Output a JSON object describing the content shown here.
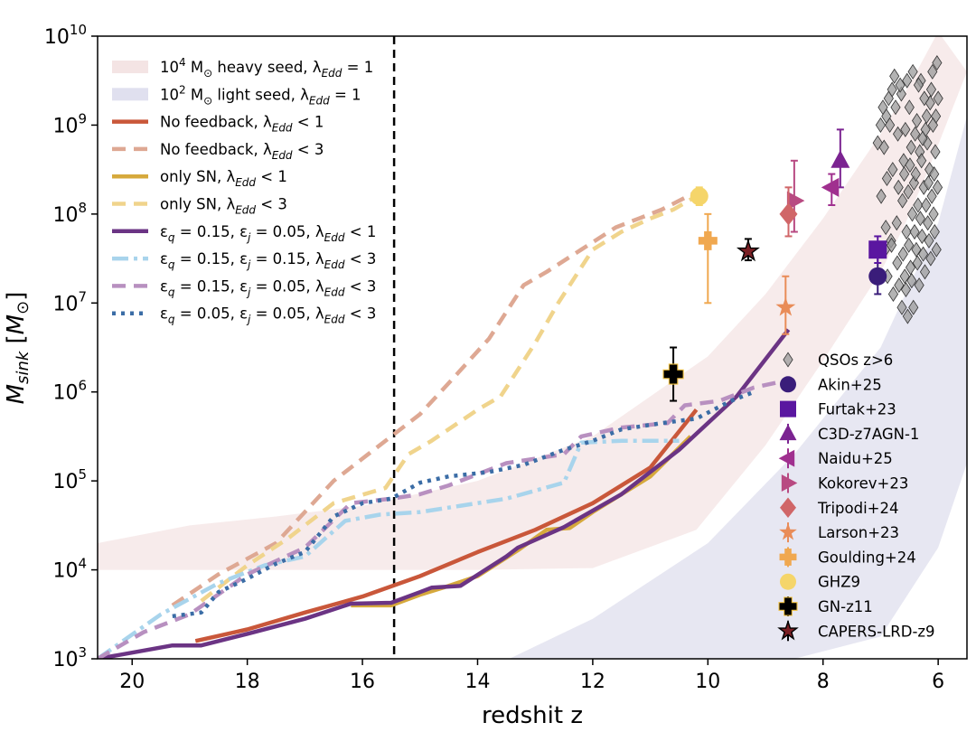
{
  "chart_data": {
    "type": "line",
    "xlabel": "redshit z",
    "ylabel": "M_sink [M_⊙]",
    "xlim": [
      20.6,
      5.5
    ],
    "ylim_log10": [
      3,
      10
    ],
    "y_scale": "log",
    "x_ticks": [
      20,
      18,
      16,
      14,
      12,
      10,
      8,
      6
    ],
    "y_tick_exponents": [
      3,
      4,
      5,
      6,
      7,
      8,
      9,
      10
    ],
    "y_tick_base": "10",
    "vertical_line": {
      "x": 15.45,
      "style": "dashed",
      "color": "#000000"
    },
    "bands": [
      {
        "id": "heavy",
        "label": "10^4 M_⊙ heavy seed, λ_Edd = 1",
        "color": "#c9797a",
        "opacity": 0.15,
        "lower": [
          [
            20.6,
            4.0
          ],
          [
            18,
            4.0
          ],
          [
            16,
            4.0
          ],
          [
            14,
            4.0
          ],
          [
            12,
            4.02
          ],
          [
            10.2,
            4.45
          ],
          [
            9,
            5.4
          ],
          [
            8,
            6.35
          ],
          [
            7,
            7.35
          ],
          [
            6.6,
            7.85
          ],
          [
            6.2,
            8.45
          ],
          [
            5.5,
            9.6
          ]
        ],
        "upper": [
          [
            20.6,
            4.3
          ],
          [
            19,
            4.5
          ],
          [
            17.5,
            4.6
          ],
          [
            16,
            4.72
          ],
          [
            14,
            5.0
          ],
          [
            12,
            5.5
          ],
          [
            10,
            6.4
          ],
          [
            9,
            7.1
          ],
          [
            8,
            7.95
          ],
          [
            7,
            8.9
          ],
          [
            6.5,
            9.45
          ],
          [
            6,
            10.05
          ]
        ]
      },
      {
        "id": "light",
        "label": "10^2 M_⊙ light seed, λ_Edd = 1",
        "color": "#7a78b8",
        "opacity": 0.18,
        "lower": [
          [
            11.55,
            3
          ],
          [
            10,
            3
          ],
          [
            8.5,
            3
          ],
          [
            7,
            3.25
          ],
          [
            6,
            4.25
          ],
          [
            5.5,
            5.2
          ]
        ],
        "upper": [
          [
            13.45,
            3
          ],
          [
            12,
            3.45
          ],
          [
            10,
            4.3
          ],
          [
            8.5,
            5.3
          ],
          [
            7,
            6.5
          ],
          [
            6,
            7.9
          ],
          [
            5.5,
            9.1
          ]
        ]
      }
    ],
    "series": [
      {
        "id": "nofb1",
        "label": "No feedback, λ_Edd < 1",
        "color": "#c9573a",
        "dash": "",
        "width": 4.5,
        "points": [
          [
            18.9,
            3.2
          ],
          [
            18,
            3.33
          ],
          [
            17,
            3.52
          ],
          [
            16,
            3.7
          ],
          [
            15,
            3.93
          ],
          [
            14,
            4.2
          ],
          [
            13,
            4.45
          ],
          [
            12,
            4.75
          ],
          [
            11,
            5.15
          ],
          [
            10.2,
            5.8
          ]
        ]
      },
      {
        "id": "nofb3",
        "label": "No feedback, λ_Edd < 3",
        "color": "#dea893",
        "dash": "15 9",
        "width": 4.5,
        "points": [
          [
            19.3,
            3.6
          ],
          [
            18.5,
            3.95
          ],
          [
            17.5,
            4.3
          ],
          [
            16.5,
            5.0
          ],
          [
            15.5,
            5.5
          ],
          [
            15,
            5.75
          ],
          [
            14.5,
            6.1
          ],
          [
            13.8,
            6.6
          ],
          [
            13.2,
            7.2
          ],
          [
            12.8,
            7.35
          ],
          [
            12.2,
            7.6
          ],
          [
            11.6,
            7.85
          ],
          [
            11.2,
            7.95
          ],
          [
            10.8,
            8.05
          ],
          [
            10.2,
            8.25
          ]
        ]
      },
      {
        "id": "sn1",
        "label": "only SN, λ_Edd < 1",
        "color": "#d6a93c",
        "dash": "",
        "width": 4.5,
        "points": [
          [
            16.2,
            3.6
          ],
          [
            15.5,
            3.6
          ],
          [
            15,
            3.72
          ],
          [
            14.5,
            3.82
          ],
          [
            14,
            3.93
          ],
          [
            13.3,
            4.22
          ],
          [
            12.8,
            4.45
          ],
          [
            12.4,
            4.47
          ],
          [
            12,
            4.65
          ],
          [
            11,
            5.05
          ],
          [
            10.3,
            5.5
          ]
        ]
      },
      {
        "id": "sn3",
        "label": "only SN, λ_Edd < 3",
        "color": "#f0d48c",
        "dash": "15 9",
        "width": 4.5,
        "points": [
          [
            18.8,
            3.65
          ],
          [
            18,
            4.05
          ],
          [
            17.3,
            4.35
          ],
          [
            16.5,
            4.75
          ],
          [
            15.6,
            4.92
          ],
          [
            15.2,
            5.3
          ],
          [
            14.8,
            5.45
          ],
          [
            14,
            5.8
          ],
          [
            13.6,
            5.95
          ],
          [
            13,
            6.55
          ],
          [
            12.6,
            7.0
          ],
          [
            12,
            7.6
          ],
          [
            11.5,
            7.8
          ],
          [
            11,
            7.95
          ],
          [
            10.6,
            8.05
          ],
          [
            10.2,
            8.2
          ]
        ]
      },
      {
        "id": "eq15ej05l1",
        "label": "ε_q = 0.15, ε_j = 0.05, λ_Edd < 1",
        "color": "#6b3484",
        "dash": "",
        "width": 4.5,
        "points": [
          [
            20.6,
            3.0
          ],
          [
            19.3,
            3.15
          ],
          [
            18.8,
            3.15
          ],
          [
            18,
            3.28
          ],
          [
            17,
            3.45
          ],
          [
            16.2,
            3.62
          ],
          [
            15.5,
            3.63
          ],
          [
            15,
            3.75
          ],
          [
            14.8,
            3.8
          ],
          [
            14.3,
            3.82
          ],
          [
            13.5,
            4.15
          ],
          [
            13.3,
            4.25
          ],
          [
            12.5,
            4.48
          ],
          [
            11.5,
            4.85
          ],
          [
            10.5,
            5.35
          ],
          [
            9.5,
            5.95
          ],
          [
            8.6,
            6.7
          ]
        ]
      },
      {
        "id": "eq15ej15l3",
        "label": "ε_q = 0.15, ε_j = 0.15, λ_Edd < 3",
        "color": "#a8d4ec",
        "dash": "18 6 4 6",
        "width": 4.5,
        "points": [
          [
            20.6,
            3.0
          ],
          [
            19.5,
            3.5
          ],
          [
            18.5,
            3.85
          ],
          [
            17.7,
            4.05
          ],
          [
            17,
            4.15
          ],
          [
            16.3,
            4.55
          ],
          [
            15.7,
            4.62
          ],
          [
            15,
            4.65
          ],
          [
            14.5,
            4.7
          ],
          [
            13.5,
            4.8
          ],
          [
            12.5,
            4.98
          ],
          [
            12.2,
            5.43
          ],
          [
            11.5,
            5.45
          ],
          [
            10.5,
            5.45
          ]
        ]
      },
      {
        "id": "eq15ej05l3",
        "label": "ε_q = 0.15, ε_j = 0.05, λ_Edd < 3",
        "color": "#b890c0",
        "dash": "15 9",
        "width": 4.5,
        "points": [
          [
            20.6,
            3.0
          ],
          [
            19.8,
            3.3
          ],
          [
            19,
            3.5
          ],
          [
            18,
            3.95
          ],
          [
            17,
            4.25
          ],
          [
            16.2,
            4.75
          ],
          [
            15.5,
            4.8
          ],
          [
            15,
            4.85
          ],
          [
            14.5,
            4.95
          ],
          [
            13.5,
            5.2
          ],
          [
            12.5,
            5.3
          ],
          [
            12.2,
            5.5
          ],
          [
            11.5,
            5.6
          ],
          [
            10.7,
            5.65
          ],
          [
            10.4,
            5.85
          ],
          [
            9.8,
            5.9
          ],
          [
            9.2,
            6.05
          ],
          [
            8.7,
            6.12
          ]
        ]
      },
      {
        "id": "eq05ej05l3",
        "label": "ε_q = 0.05, ε_j = 0.05, λ_Edd < 3",
        "color": "#3b6da6",
        "dash": "4 6",
        "width": 4.5,
        "points": [
          [
            19.3,
            3.48
          ],
          [
            18.8,
            3.52
          ],
          [
            18.5,
            3.75
          ],
          [
            18,
            3.9
          ],
          [
            17.5,
            4.07
          ],
          [
            17,
            4.2
          ],
          [
            16.5,
            4.6
          ],
          [
            16,
            4.75
          ],
          [
            15.5,
            4.8
          ],
          [
            15,
            4.98
          ],
          [
            14.5,
            5.05
          ],
          [
            13.8,
            5.1
          ],
          [
            13.2,
            5.18
          ],
          [
            12.5,
            5.35
          ],
          [
            12,
            5.45
          ],
          [
            11.5,
            5.58
          ],
          [
            10.8,
            5.65
          ],
          [
            10.2,
            5.7
          ],
          [
            9.6,
            5.9
          ],
          [
            9.2,
            6.0
          ]
        ]
      }
    ],
    "qso_label": "QSOs z>6",
    "qso_color": "#9a9a9a",
    "qsos": [
      [
        6.1,
        9.6
      ],
      [
        6.3,
        9.5
      ],
      [
        6.5,
        9.2
      ],
      [
        6.8,
        9.4
      ],
      [
        6.0,
        9.3
      ],
      [
        6.2,
        9.1
      ],
      [
        6.4,
        8.9
      ],
      [
        6.6,
        8.6
      ],
      [
        6.05,
        8.7
      ],
      [
        6.15,
        8.5
      ],
      [
        6.25,
        8.3
      ],
      [
        6.35,
        8.1
      ],
      [
        6.45,
        8.0
      ],
      [
        6.55,
        7.8
      ],
      [
        6.7,
        8.9
      ],
      [
        6.9,
        9.1
      ],
      [
        6.02,
        9.7
      ],
      [
        6.12,
        9.4
      ],
      [
        6.22,
        8.95
      ],
      [
        6.32,
        8.7
      ],
      [
        6.42,
        8.35
      ],
      [
        6.52,
        8.25
      ],
      [
        6.62,
        8.15
      ],
      [
        6.72,
        7.9
      ],
      [
        6.82,
        7.7
      ],
      [
        6.92,
        7.6
      ],
      [
        7.0,
        9.0
      ],
      [
        7.05,
        8.8
      ],
      [
        6.08,
        8.0
      ],
      [
        6.18,
        7.9
      ],
      [
        6.28,
        7.75
      ],
      [
        6.38,
        7.6
      ],
      [
        6.48,
        7.4
      ],
      [
        6.58,
        7.3
      ],
      [
        6.68,
        7.2
      ],
      [
        6.78,
        7.1
      ],
      [
        6.88,
        7.3
      ],
      [
        6.03,
        7.6
      ],
      [
        6.13,
        7.5
      ],
      [
        6.23,
        7.35
      ],
      [
        6.33,
        7.2
      ],
      [
        6.43,
        6.95
      ],
      [
        6.53,
        6.85
      ],
      [
        6.63,
        6.95
      ],
      [
        6.04,
        9.1
      ],
      [
        6.14,
        9.25
      ],
      [
        6.24,
        9.3
      ],
      [
        6.34,
        9.45
      ],
      [
        6.44,
        9.6
      ],
      [
        6.54,
        9.5
      ],
      [
        6.64,
        9.35
      ],
      [
        6.74,
        9.2
      ],
      [
        6.84,
        9.0
      ],
      [
        6.94,
        8.75
      ],
      [
        6.01,
        8.3
      ],
      [
        6.11,
        8.2
      ],
      [
        6.21,
        8.1
      ],
      [
        6.31,
        7.95
      ],
      [
        6.41,
        7.8
      ],
      [
        6.51,
        7.65
      ],
      [
        6.61,
        7.55
      ],
      [
        6.71,
        7.45
      ],
      [
        6.81,
        7.65
      ],
      [
        6.91,
        7.85
      ],
      [
        6.06,
        7.8
      ],
      [
        6.16,
        7.7
      ],
      [
        6.26,
        7.55
      ],
      [
        6.36,
        7.45
      ],
      [
        6.46,
        7.25
      ],
      [
        6.56,
        7.15
      ],
      [
        6.66,
        9.45
      ],
      [
        6.76,
        9.55
      ],
      [
        6.86,
        9.3
      ],
      [
        6.96,
        9.2
      ],
      [
        6.09,
        9.0
      ],
      [
        6.19,
        8.8
      ],
      [
        6.29,
        8.6
      ],
      [
        6.39,
        8.45
      ],
      [
        6.49,
        8.55
      ],
      [
        6.59,
        8.45
      ],
      [
        6.69,
        8.3
      ],
      [
        6.79,
        8.5
      ],
      [
        6.89,
        8.4
      ],
      [
        6.99,
        8.2
      ],
      [
        6.07,
        8.45
      ],
      [
        6.17,
        8.35
      ],
      [
        6.27,
        8.85
      ],
      [
        6.37,
        9.05
      ],
      [
        6.47,
        8.75
      ],
      [
        6.57,
        8.95
      ]
    ],
    "observations": [
      {
        "label": "Akin+25",
        "marker": "circle",
        "color": "#3a1d7a",
        "x": 7.05,
        "y": 7.3,
        "err": [
          7.1,
          7.55
        ]
      },
      {
        "label": "Furtak+23",
        "marker": "square",
        "color": "#5a16a0",
        "x": 7.05,
        "y": 7.6,
        "err": [
          7.45,
          7.75
        ]
      },
      {
        "label": "C3D-z7AGN-1",
        "marker": "triangle-up",
        "color": "#7b2391",
        "x": 7.7,
        "y": 8.6,
        "err": [
          8.3,
          8.95
        ]
      },
      {
        "label": "Naidu+25",
        "marker": "triangle-left",
        "color": "#a0308f",
        "x": 7.85,
        "y": 8.3,
        "err": [
          8.1,
          8.45
        ]
      },
      {
        "label": "Kokorev+23",
        "marker": "triangle-right",
        "color": "#b84a82",
        "x": 8.5,
        "y": 8.15,
        "err": [
          7.8,
          8.6
        ]
      },
      {
        "label": "Tripodi+24",
        "marker": "diamond",
        "color": "#d06668",
        "x": 8.6,
        "y": 8.0,
        "err": [
          7.75,
          8.3
        ]
      },
      {
        "label": "Larson+23",
        "marker": "star",
        "color": "#e98c58",
        "x": 8.65,
        "y": 6.95,
        "err": [
          6.65,
          7.3
        ]
      },
      {
        "label": "Goulding+24",
        "marker": "plus",
        "color": "#f0a850",
        "x": 10.0,
        "y": 7.7,
        "err": [
          7.0,
          8.0
        ]
      },
      {
        "label": "GHZ9",
        "marker": "circle",
        "color": "#f5d56a",
        "x": 10.15,
        "y": 8.2,
        "err": [
          8.1,
          8.3
        ]
      },
      {
        "label": "GN-z11",
        "marker": "plus-black",
        "color": "#000000",
        "x": 10.6,
        "y": 6.2,
        "err": [
          5.9,
          6.5
        ]
      },
      {
        "label": "CAPERS-LRD-z9",
        "marker": "star-dark",
        "color": "#7a1f24",
        "x": 9.3,
        "y": 7.58,
        "err": [
          7.48,
          7.72
        ]
      }
    ]
  }
}
